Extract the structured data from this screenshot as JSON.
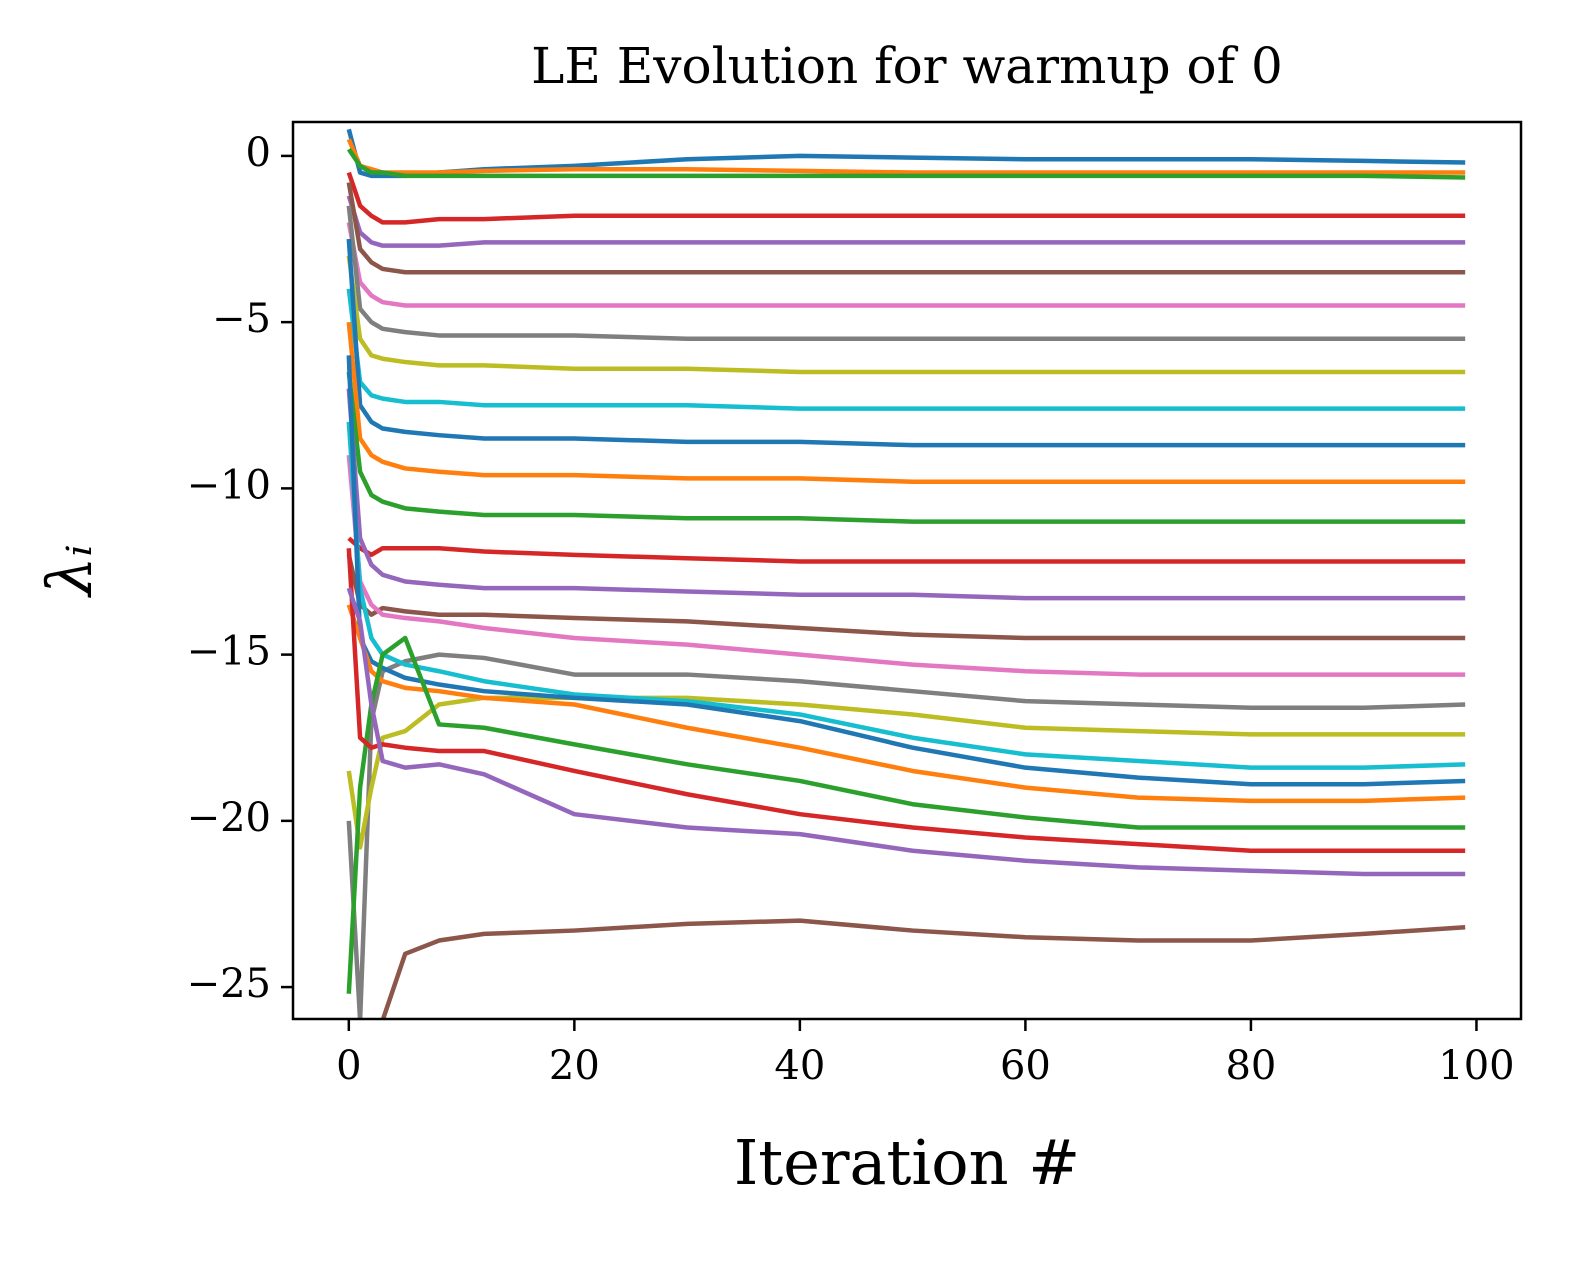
{
  "chart_data": {
    "type": "line",
    "title": "LE Evolution for warmup of 0",
    "x_label": "Iteration #",
    "y_label": "λᵢ",
    "x": [
      0,
      1,
      2,
      3,
      5,
      8,
      12,
      20,
      30,
      40,
      50,
      60,
      70,
      80,
      90,
      99
    ],
    "xlim": [
      -4.95,
      103.95
    ],
    "ylim": [
      -25.96,
      1.02
    ],
    "xticks": [
      0,
      20,
      40,
      60,
      80,
      100
    ],
    "yticks": [
      {
        "value": 0,
        "label": "0"
      },
      {
        "value": -5,
        "label": "−5"
      },
      {
        "value": -10,
        "label": "−10"
      },
      {
        "value": -15,
        "label": "−15"
      },
      {
        "value": -20,
        "label": "−20"
      },
      {
        "value": -25,
        "label": "−25"
      }
    ],
    "series": [
      {
        "color": "#1f77b4",
        "values": [
          0.8,
          -0.5,
          -0.6,
          -0.6,
          -0.6,
          -0.5,
          -0.4,
          -0.3,
          -0.1,
          0,
          -0.05,
          -0.1,
          -0.1,
          -0.1,
          -0.15,
          -0.2
        ]
      },
      {
        "color": "#ff7f0e",
        "values": [
          0.5,
          -0.3,
          -0.4,
          -0.5,
          -0.5,
          -0.5,
          -0.45,
          -0.4,
          -0.4,
          -0.45,
          -0.5,
          -0.5,
          -0.5,
          -0.5,
          -0.5,
          -0.5
        ]
      },
      {
        "color": "#2ca02c",
        "values": [
          0.2,
          -0.3,
          -0.5,
          -0.5,
          -0.6,
          -0.6,
          -0.6,
          -0.6,
          -0.6,
          -0.6,
          -0.6,
          -0.6,
          -0.6,
          -0.6,
          -0.6,
          -0.65
        ]
      },
      {
        "color": "#d62728",
        "values": [
          -0.5,
          -1.5,
          -1.8,
          -2.0,
          -2.0,
          -1.9,
          -1.9,
          -1.8,
          -1.8,
          -1.8,
          -1.8,
          -1.8,
          -1.8,
          -1.8,
          -1.8,
          -1.8
        ]
      },
      {
        "color": "#9467bd",
        "values": [
          -1.2,
          -2.3,
          -2.6,
          -2.7,
          -2.7,
          -2.7,
          -2.6,
          -2.6,
          -2.6,
          -2.6,
          -2.6,
          -2.6,
          -2.6,
          -2.6,
          -2.6,
          -2.6
        ]
      },
      {
        "color": "#8c564b",
        "values": [
          -0.8,
          -2.8,
          -3.2,
          -3.4,
          -3.5,
          -3.5,
          -3.5,
          -3.5,
          -3.5,
          -3.5,
          -3.5,
          -3.5,
          -3.5,
          -3.5,
          -3.5,
          -3.5
        ]
      },
      {
        "color": "#e377c2",
        "values": [
          -2,
          -3.8,
          -4.2,
          -4.4,
          -4.5,
          -4.5,
          -4.5,
          -4.5,
          -4.5,
          -4.5,
          -4.5,
          -4.5,
          -4.5,
          -4.5,
          -4.5,
          -4.5
        ]
      },
      {
        "color": "#7f7f7f",
        "values": [
          -1.5,
          -4.6,
          -5.0,
          -5.2,
          -5.3,
          -5.4,
          -5.4,
          -5.4,
          -5.5,
          -5.5,
          -5.5,
          -5.5,
          -5.5,
          -5.5,
          -5.5,
          -5.5
        ]
      },
      {
        "color": "#bcbd22",
        "values": [
          -3,
          -5.5,
          -6.0,
          -6.1,
          -6.2,
          -6.3,
          -6.3,
          -6.4,
          -6.4,
          -6.5,
          -6.5,
          -6.5,
          -6.5,
          -6.5,
          -6.5,
          -6.5
        ]
      },
      {
        "color": "#17becf",
        "values": [
          -4,
          -6.8,
          -7.2,
          -7.3,
          -7.4,
          -7.4,
          -7.5,
          -7.5,
          -7.5,
          -7.6,
          -7.6,
          -7.6,
          -7.6,
          -7.6,
          -7.6,
          -7.6
        ]
      },
      {
        "color": "#1f77b4",
        "values": [
          -2.5,
          -7.5,
          -8.0,
          -8.2,
          -8.3,
          -8.4,
          -8.5,
          -8.5,
          -8.6,
          -8.6,
          -8.7,
          -8.7,
          -8.7,
          -8.7,
          -8.7,
          -8.7
        ]
      },
      {
        "color": "#ff7f0e",
        "values": [
          -5,
          -8.5,
          -9.0,
          -9.2,
          -9.4,
          -9.5,
          -9.6,
          -9.6,
          -9.7,
          -9.7,
          -9.8,
          -9.8,
          -9.8,
          -9.8,
          -9.8,
          -9.8
        ]
      },
      {
        "color": "#2ca02c",
        "values": [
          -6.5,
          -9.5,
          -10.2,
          -10.4,
          -10.6,
          -10.7,
          -10.8,
          -10.8,
          -10.9,
          -10.9,
          -11.0,
          -11.0,
          -11.0,
          -11.0,
          -11.0,
          -11.0
        ]
      },
      {
        "color": "#d62728",
        "values": [
          -11.5,
          -11.8,
          -12.0,
          -11.8,
          -11.8,
          -11.8,
          -11.9,
          -12.0,
          -12.1,
          -12.2,
          -12.2,
          -12.2,
          -12.2,
          -12.2,
          -12.2,
          -12.2
        ]
      },
      {
        "color": "#9467bd",
        "values": [
          -7,
          -11.5,
          -12.3,
          -12.6,
          -12.8,
          -12.9,
          -13.0,
          -13.0,
          -13.1,
          -13.2,
          -13.2,
          -13.3,
          -13.3,
          -13.3,
          -13.3,
          -13.3
        ]
      },
      {
        "color": "#8c564b",
        "values": [
          -12,
          -13.5,
          -13.8,
          -13.6,
          -13.7,
          -13.8,
          -13.8,
          -13.9,
          -14.0,
          -14.2,
          -14.4,
          -14.5,
          -14.5,
          -14.5,
          -14.5,
          -14.5
        ]
      },
      {
        "color": "#e377c2",
        "values": [
          -9,
          -12.8,
          -13.5,
          -13.8,
          -13.9,
          -14.0,
          -14.2,
          -14.5,
          -14.7,
          -15.0,
          -15.3,
          -15.5,
          -15.6,
          -15.6,
          -15.6,
          -15.6
        ]
      },
      {
        "color": "#7f7f7f",
        "values": [
          -20,
          -26,
          -17,
          -15.5,
          -15.2,
          -15.0,
          -15.1,
          -15.6,
          -15.6,
          -15.8,
          -16.1,
          -16.4,
          -16.5,
          -16.6,
          -16.6,
          -16.5
        ]
      },
      {
        "color": "#bcbd22",
        "values": [
          -18.5,
          -20.8,
          -19,
          -17.5,
          -17.3,
          -16.5,
          -16.3,
          -16.3,
          -16.3,
          -16.5,
          -16.8,
          -17.2,
          -17.3,
          -17.4,
          -17.4,
          -17.4
        ]
      },
      {
        "color": "#17becf",
        "values": [
          -8,
          -13,
          -14.5,
          -15.0,
          -15.3,
          -15.5,
          -15.8,
          -16.2,
          -16.4,
          -16.8,
          -17.5,
          -18.0,
          -18.2,
          -18.4,
          -18.4,
          -18.3
        ]
      },
      {
        "color": "#1f77b4",
        "values": [
          -6,
          -14.5,
          -15.2,
          -15.4,
          -15.7,
          -15.9,
          -16.1,
          -16.3,
          -16.5,
          -17.0,
          -17.8,
          -18.4,
          -18.7,
          -18.9,
          -18.9,
          -18.8
        ]
      },
      {
        "color": "#ff7f0e",
        "values": [
          -13.5,
          -14.5,
          -15.5,
          -15.8,
          -16.0,
          -16.1,
          -16.3,
          -16.5,
          -17.2,
          -17.8,
          -18.5,
          -19.0,
          -19.3,
          -19.4,
          -19.4,
          -19.3
        ]
      },
      {
        "color": "#2ca02c",
        "values": [
          -25.2,
          -19.0,
          -16.5,
          -15.0,
          -14.5,
          -17.1,
          -17.2,
          -17.7,
          -18.3,
          -18.8,
          -19.5,
          -19.9,
          -20.2,
          -20.2,
          -20.2,
          -20.2
        ]
      },
      {
        "color": "#d62728",
        "values": [
          -11.8,
          -17.5,
          -17.8,
          -17.7,
          -17.8,
          -17.9,
          -17.9,
          -18.5,
          -19.2,
          -19.8,
          -20.2,
          -20.5,
          -20.7,
          -20.9,
          -20.9,
          -20.9
        ]
      },
      {
        "color": "#9467bd",
        "values": [
          -13,
          -14,
          -16.5,
          -18.2,
          -18.4,
          -18.3,
          -18.6,
          -19.8,
          -20.2,
          -20.4,
          -20.9,
          -21.2,
          -21.4,
          -21.5,
          -21.6,
          -21.6
        ]
      },
      {
        "color": "#8c564b",
        "values": [
          -28,
          -30,
          -27.5,
          -26,
          -24,
          -23.6,
          -23.4,
          -23.3,
          -23.1,
          -23.0,
          -23.3,
          -23.5,
          -23.6,
          -23.6,
          -23.4,
          -23.2
        ]
      }
    ]
  }
}
